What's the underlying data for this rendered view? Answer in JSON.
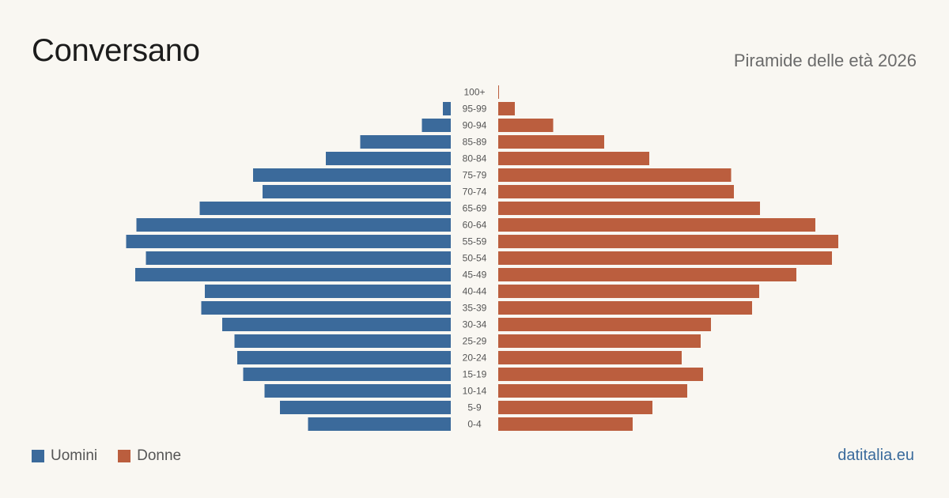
{
  "header": {
    "title": "Conversano",
    "subtitle": "Piramide delle età 2026"
  },
  "legend": {
    "male_label": "Uomini",
    "female_label": "Donne"
  },
  "footer": {
    "site": "datitalia.eu"
  },
  "colors": {
    "male": "#3b6a9b",
    "female": "#bb5e3e",
    "label": "#555555"
  },
  "chart_data": {
    "type": "bar",
    "orientation": "horizontal-pyramid",
    "categories": [
      "100+",
      "95-99",
      "90-94",
      "85-89",
      "80-84",
      "75-79",
      "70-74",
      "65-69",
      "60-64",
      "55-59",
      "50-54",
      "45-49",
      "40-44",
      "35-39",
      "30-34",
      "25-29",
      "20-24",
      "15-19",
      "10-14",
      "5-9",
      "0-4"
    ],
    "series": [
      {
        "name": "Uomini",
        "values": [
          0,
          20,
          73,
          229,
          316,
          500,
          476,
          635,
          795,
          821,
          771,
          798,
          622,
          631,
          578,
          547,
          540,
          525,
          471,
          432,
          361
        ]
      },
      {
        "name": "Donne",
        "values": [
          2,
          42,
          139,
          268,
          382,
          589,
          596,
          662,
          802,
          860,
          844,
          754,
          660,
          642,
          538,
          512,
          464,
          518,
          478,
          390,
          340
        ]
      }
    ],
    "grid": false,
    "legend_position": "bottom-left"
  }
}
